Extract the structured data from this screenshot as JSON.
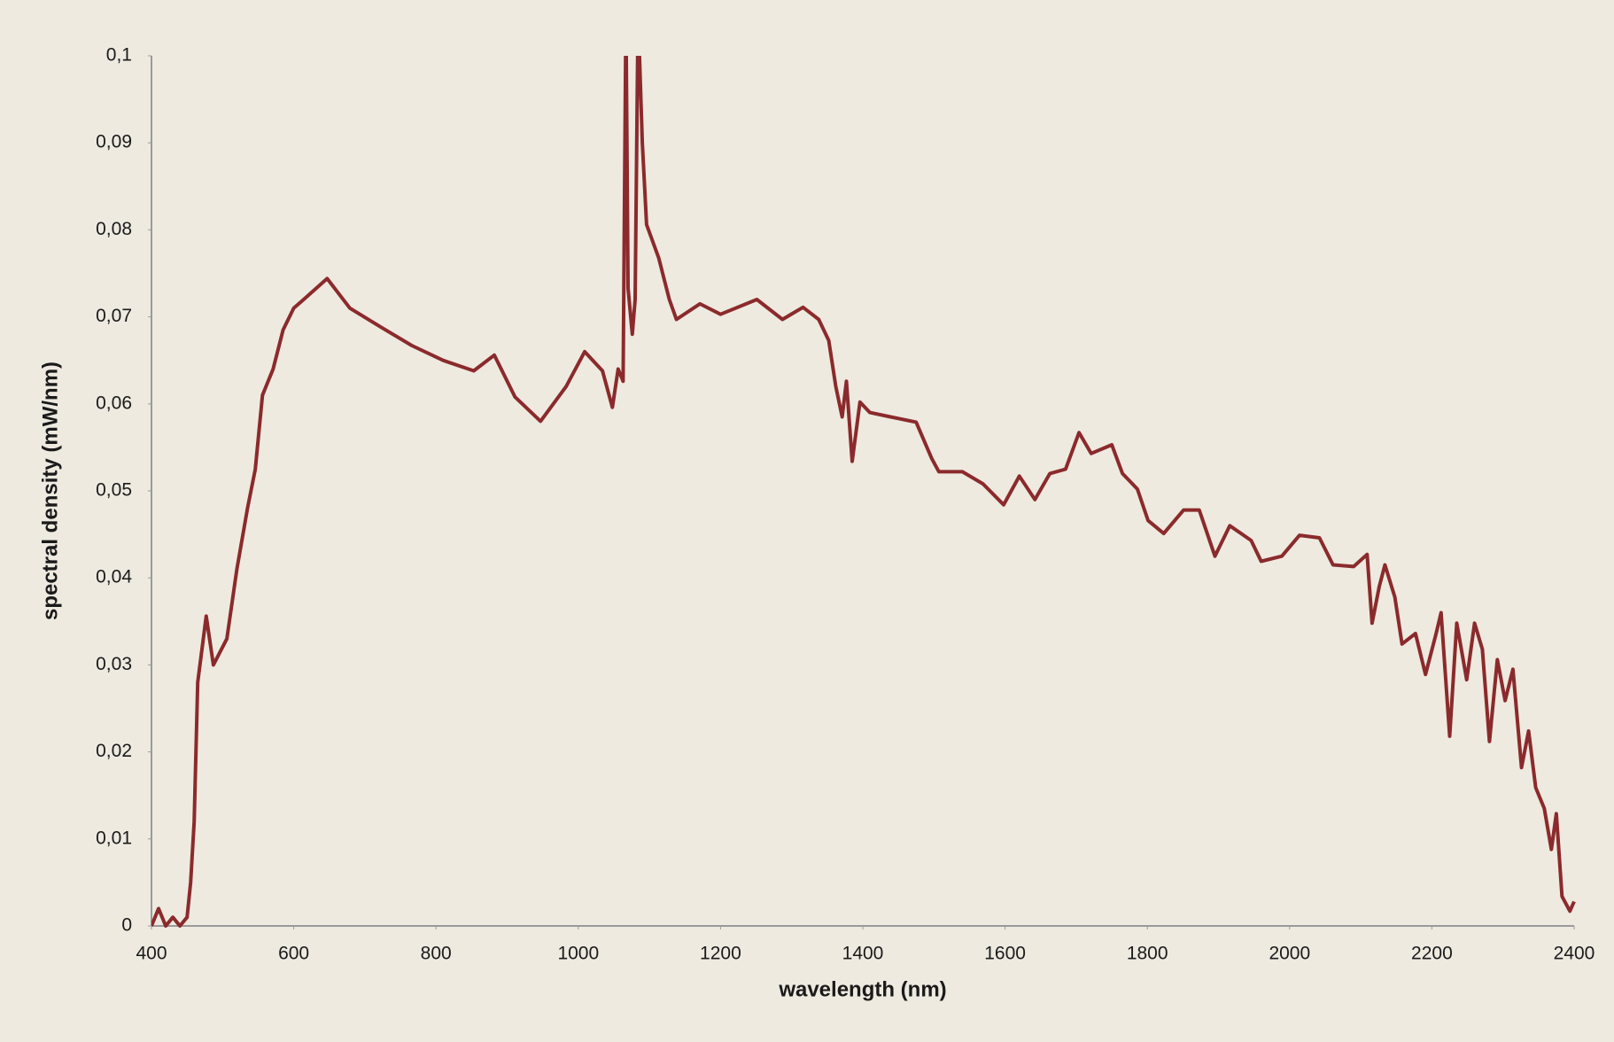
{
  "chart_data": {
    "type": "line",
    "x_label": "wavelength (nm)",
    "y_label": "spectral density (mW/nm)",
    "color": "#8b2a2c",
    "x": [
      400,
      410,
      420,
      430,
      440,
      450,
      455,
      460,
      465,
      477,
      487,
      506,
      520,
      535,
      546,
      556,
      571,
      585,
      600,
      614,
      647,
      679,
      723,
      766,
      810,
      853,
      882,
      911,
      947,
      983,
      1009,
      1034,
      1048,
      1056,
      1063,
      1067,
      1070,
      1076,
      1080,
      1084,
      1090,
      1096,
      1113,
      1128,
      1138,
      1171,
      1200,
      1251,
      1287,
      1316,
      1338,
      1352,
      1362,
      1371,
      1377,
      1385,
      1396,
      1410,
      1439,
      1475,
      1497,
      1507,
      1540,
      1569,
      1598,
      1620,
      1642,
      1663,
      1685,
      1704,
      1721,
      1750,
      1765,
      1786,
      1801,
      1823,
      1851,
      1873,
      1895,
      1916,
      1946,
      1960,
      1989,
      2014,
      2042,
      2061,
      2090,
      2109,
      2116,
      2126,
      2134,
      2148,
      2158,
      2177,
      2191,
      2206,
      2213,
      2225,
      2235,
      2249,
      2260,
      2271,
      2281,
      2292,
      2303,
      2314,
      2326,
      2336,
      2346,
      2358,
      2368,
      2375,
      2383,
      2394,
      2400
    ],
    "values": [
      0,
      0.002,
      0,
      0.001,
      0,
      0.001,
      0.005,
      0.012,
      0.028,
      0.0356,
      0.03,
      0.033,
      0.041,
      0.048,
      0.0525,
      0.061,
      0.064,
      0.0685,
      0.071,
      0.072,
      0.0744,
      0.071,
      0.0688,
      0.0667,
      0.065,
      0.0638,
      0.0656,
      0.0608,
      0.058,
      0.062,
      0.066,
      0.0638,
      0.0596,
      0.064,
      0.0626,
      0.105,
      0.0733,
      0.068,
      0.072,
      0.105,
      0.09,
      0.0806,
      0.0768,
      0.072,
      0.0697,
      0.0715,
      0.0703,
      0.072,
      0.0697,
      0.0711,
      0.0697,
      0.0673,
      0.062,
      0.0585,
      0.0626,
      0.0534,
      0.0602,
      0.059,
      0.0585,
      0.0579,
      0.0537,
      0.0522,
      0.0522,
      0.0508,
      0.0484,
      0.0517,
      0.049,
      0.052,
      0.0525,
      0.0567,
      0.0543,
      0.0553,
      0.052,
      0.0502,
      0.0466,
      0.0451,
      0.0478,
      0.0478,
      0.0425,
      0.046,
      0.0443,
      0.0419,
      0.0425,
      0.0449,
      0.0446,
      0.0415,
      0.0413,
      0.0427,
      0.0348,
      0.039,
      0.0415,
      0.0378,
      0.0324,
      0.0336,
      0.0289,
      0.0336,
      0.036,
      0.0218,
      0.0348,
      0.0283,
      0.0348,
      0.0318,
      0.0212,
      0.0306,
      0.0259,
      0.0295,
      0.0182,
      0.0224,
      0.0159,
      0.0135,
      0.0088,
      0.0129,
      0.0034,
      0.0017,
      0.0028
    ],
    "xlim": [
      400,
      2400
    ],
    "xticks": [
      400,
      600,
      800,
      1000,
      1200,
      1400,
      1600,
      1800,
      2000,
      2200,
      2400
    ],
    "ylim": [
      0,
      0.1
    ],
    "yticks": [
      0,
      {
        "value": 0.01,
        "label": "0,01"
      },
      {
        "value": 0.02,
        "label": "0,02"
      },
      {
        "value": 0.03,
        "label": "0,03"
      },
      {
        "value": 0.04,
        "label": "0,04"
      },
      {
        "value": 0.05,
        "label": "0,05"
      },
      {
        "value": 0.06,
        "label": "0,06"
      },
      {
        "value": 0.07,
        "label": "0,07"
      },
      {
        "value": 0.08,
        "label": "0,08"
      },
      {
        "value": 0.09,
        "label": "0,09"
      },
      {
        "value": 0.1,
        "label": "0,1"
      }
    ],
    "grid": false
  }
}
